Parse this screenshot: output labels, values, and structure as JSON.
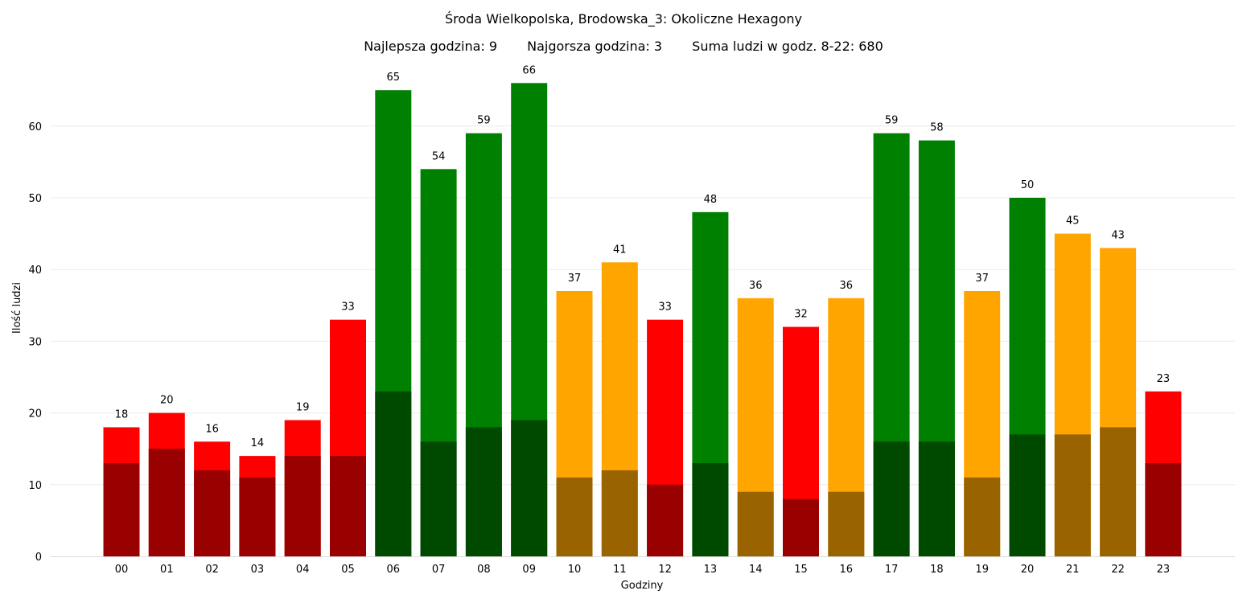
{
  "chart_data": {
    "type": "bar",
    "title": "Środa Wielkopolska, Brodowska_3: Okoliczne Hexagony",
    "subtitle": {
      "best_hour": "Najlepsza godzina: 9",
      "worst_hour": "Najgorsza godzina: 3",
      "sum": "Suma ludzi w godz. 8-22: 680"
    },
    "xlabel": "Godziny",
    "ylabel": "Ilość ludzi",
    "ylim": [
      0,
      68
    ],
    "yticks": [
      0,
      10,
      20,
      30,
      40,
      50,
      60
    ],
    "grid": true,
    "categories": [
      "00",
      "01",
      "02",
      "03",
      "04",
      "05",
      "06",
      "07",
      "08",
      "09",
      "10",
      "11",
      "12",
      "13",
      "14",
      "15",
      "16",
      "17",
      "18",
      "19",
      "20",
      "21",
      "22",
      "23"
    ],
    "values": [
      18,
      20,
      16,
      14,
      19,
      33,
      65,
      54,
      59,
      66,
      37,
      41,
      33,
      48,
      36,
      32,
      36,
      59,
      58,
      37,
      50,
      45,
      43,
      23
    ],
    "inner_values": [
      13,
      15,
      12,
      11,
      14,
      14,
      23,
      16,
      18,
      19,
      11,
      12,
      10,
      13,
      9,
      8,
      9,
      16,
      16,
      11,
      17,
      17,
      18,
      13
    ],
    "levels": [
      "red",
      "red",
      "red",
      "red",
      "red",
      "red",
      "green",
      "green",
      "green",
      "green",
      "orange",
      "orange",
      "red",
      "green",
      "orange",
      "red",
      "orange",
      "green",
      "green",
      "orange",
      "green",
      "orange",
      "orange",
      "red"
    ],
    "colors": {
      "green": "#008000",
      "green_dark": "#004a00",
      "orange": "#ffa500",
      "orange_dark": "#996300",
      "red": "#ff0000",
      "red_dark": "#990000",
      "grid": "#ebebeb",
      "axis": "#d9d9d9"
    }
  }
}
